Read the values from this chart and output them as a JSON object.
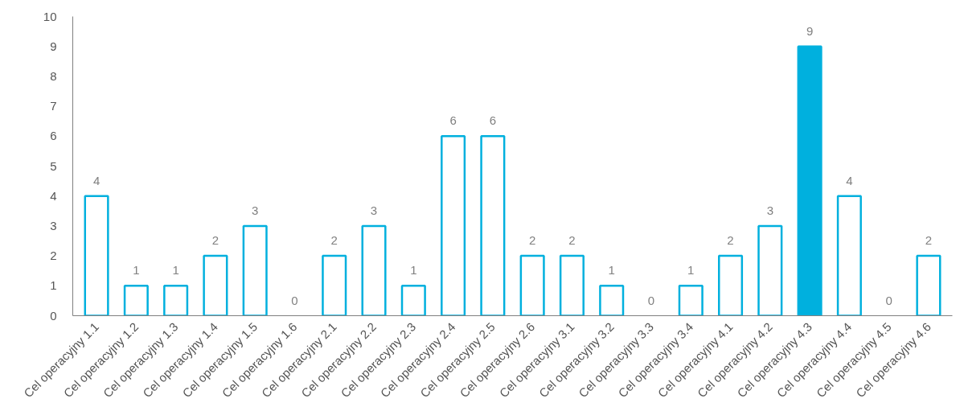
{
  "chart_data": {
    "type": "bar",
    "categories": [
      "Cel operacyjny 1.1",
      "Cel operacyjny 1.2",
      "Cel operacyjny 1.3",
      "Cel operacyjny 1.4",
      "Cel operacyjny 1.5",
      "Cel operacyjny 1.6",
      "Cel operacyjny 2.1",
      "Cel operacyjny 2.2",
      "Cel operacyjny 2.3",
      "Cel operacyjny 2.4",
      "Cel operacyjny 2.5",
      "Cel operacyjny 2.6",
      "Cel operacyjny 3.1",
      "Cel operacyjny 3.2",
      "Cel operacyjny 3.3",
      "Cel operacyjny 3.4",
      "Cel operacyjny 4.1",
      "Cel operacyjny 4.2",
      "Cel operacyjny 4.3",
      "Cel operacyjny 4.4",
      "Cel operacyjny 4.5",
      "Cel operacyjny 4.6"
    ],
    "values": [
      4,
      1,
      1,
      2,
      3,
      0,
      2,
      3,
      1,
      6,
      6,
      2,
      2,
      1,
      0,
      1,
      2,
      3,
      9,
      4,
      0,
      2
    ],
    "colors": [
      "#ffffff",
      "#ffffff",
      "#ffffff",
      "#ffffff",
      "#ffffff",
      "#ffffff",
      "#ffffff",
      "#ffffff",
      "#ffffff",
      "#ffffff",
      "#ffffff",
      "#ffffff",
      "#ffffff",
      "#ffffff",
      "#ffffff",
      "#ffffff",
      "#ffffff",
      "#ffffff",
      "#00b0de",
      "#ffffff",
      "#ffffff",
      "#ffffff"
    ],
    "ylim": [
      0,
      10
    ],
    "yticks": [
      0,
      1,
      2,
      3,
      4,
      5,
      6,
      7,
      8,
      9,
      10
    ],
    "data_labels": true
  }
}
